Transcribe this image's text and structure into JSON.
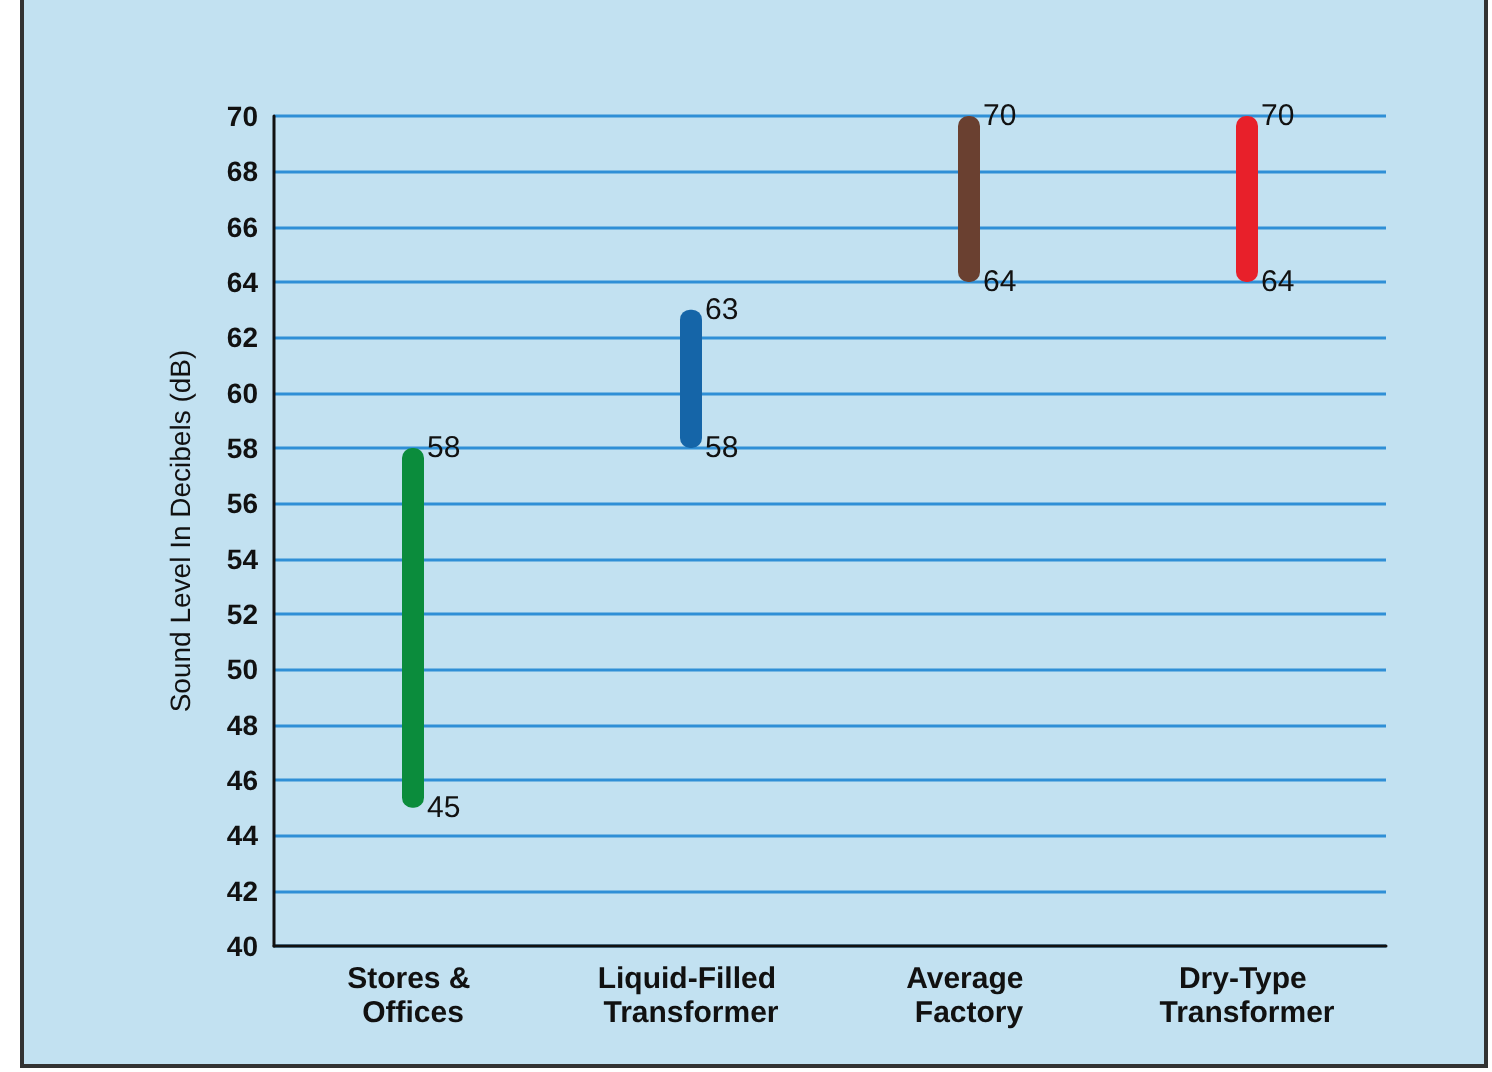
{
  "chart_data": {
    "type": "bar",
    "ylabel": "Sound Level In Decibels (dB)",
    "categories": [
      "Stores & Offices",
      "Liquid-Filled Transformer",
      "Average Factory",
      "Dry-Type Transformer"
    ],
    "base": [
      45,
      58,
      64,
      64
    ],
    "values": [
      13,
      5,
      6,
      6
    ],
    "colors": [
      "#0b8c3c",
      "#1565a8",
      "#6a4030",
      "#e8202a"
    ],
    "ylim": [
      40,
      70
    ],
    "yticks": [
      40,
      42,
      44,
      46,
      48,
      50,
      52,
      54,
      56,
      58,
      60,
      62,
      64,
      66,
      68,
      70
    ],
    "grid": "y",
    "annotations": [
      {
        "text": "45",
        "x": "Stores & Offices",
        "y": 45
      },
      {
        "text": "58",
        "x": "Stores & Offices",
        "y": 58
      },
      {
        "text": "58",
        "x": "Liquid-Filled Transformer",
        "y": 58
      },
      {
        "text": "63",
        "x": "Liquid-Filled Transformer",
        "y": 63
      },
      {
        "text": "64",
        "x": "Average Factory",
        "y": 64
      },
      {
        "text": "70",
        "x": "Average Factory",
        "y": 70
      },
      {
        "text": "64",
        "x": "Dry-Type Transformer",
        "y": 64
      },
      {
        "text": "70",
        "x": "Dry-Type Transformer",
        "y": 70
      }
    ]
  }
}
